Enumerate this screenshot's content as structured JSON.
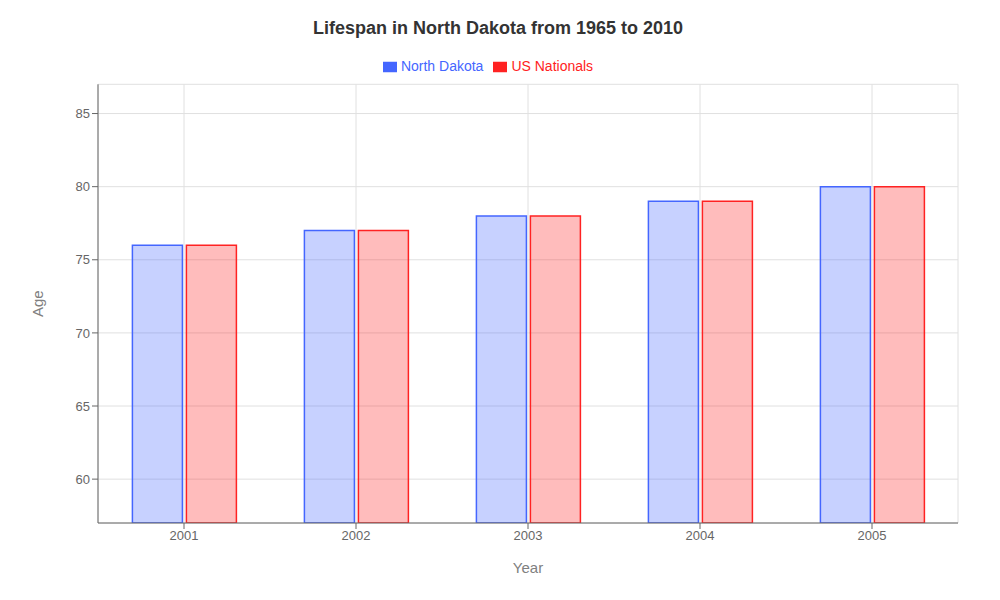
{
  "chart_data": {
    "type": "bar",
    "title": "Lifespan in North Dakota from 1965 to 2010",
    "x_label": "Year",
    "y_label": "Age",
    "categories": [
      "2001",
      "2002",
      "2003",
      "2004",
      "2005"
    ],
    "series": [
      {
        "name": "North Dakota",
        "color": "#4466ff",
        "values": [
          76,
          77,
          78,
          79,
          80
        ]
      },
      {
        "name": "US Nationals",
        "color": "#ff2222",
        "values": [
          76,
          77,
          78,
          79,
          80
        ]
      }
    ],
    "ylim": [
      57,
      87
    ],
    "yticks": [
      60,
      65,
      70,
      75,
      80,
      85
    ],
    "grid": true,
    "legend": "top"
  }
}
